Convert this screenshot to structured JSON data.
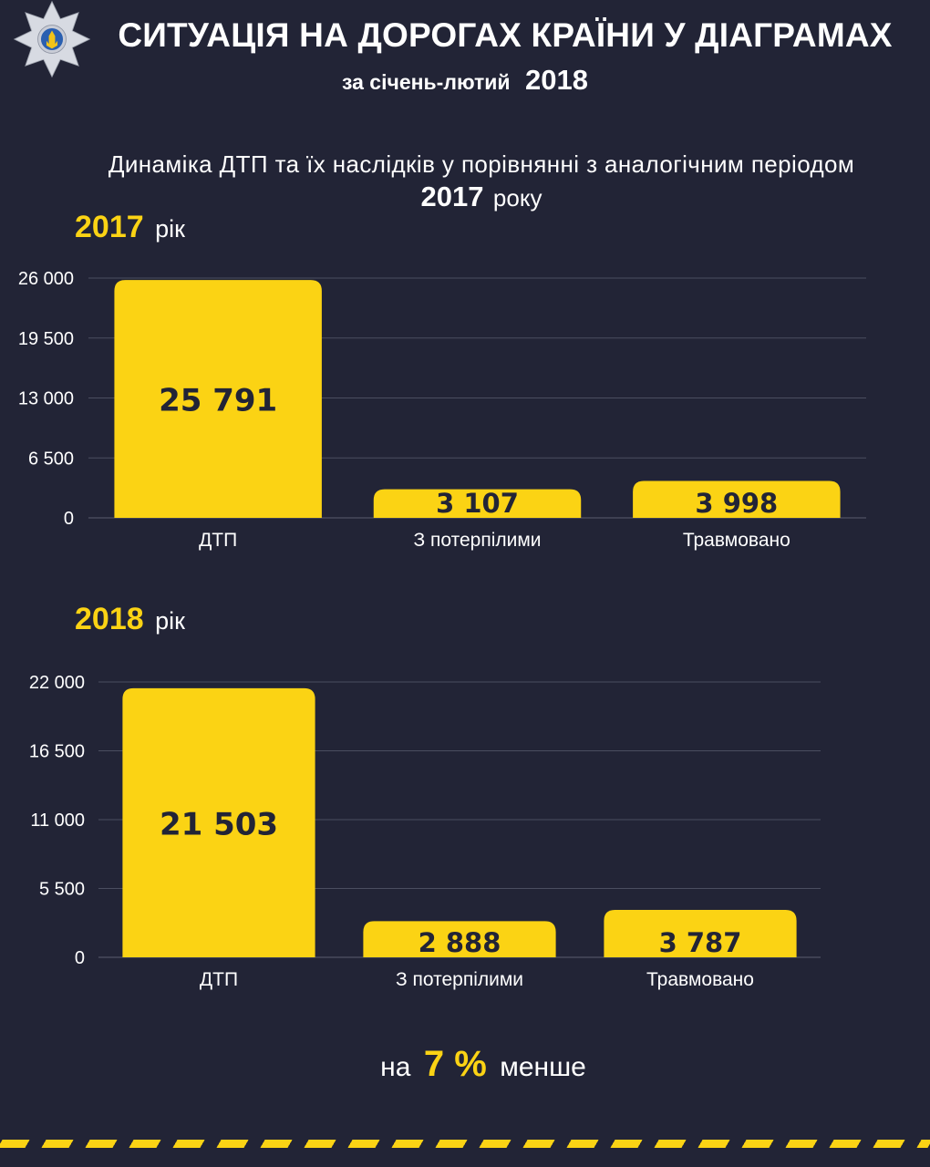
{
  "title": "СИТУАЦІЯ НА ДОРОГАХ КРАЇНИ У ДІАГРАМАХ",
  "subtitle": {
    "text": "за січень-лютий",
    "year": "2018"
  },
  "heading": {
    "line1": "Динаміка ДТП та їх наслідків  у порівнянні з аналогічним періодом",
    "year": "2017",
    "word": "року"
  },
  "footer": {
    "before": "на",
    "percent": "7 %",
    "after": "менше"
  },
  "colors": {
    "background": "#222436",
    "accent": "#fbd314",
    "text": "#ffffff",
    "value_label": "#222436"
  },
  "logo_icon": "police-star-trident-icon",
  "chart_data": [
    {
      "type": "bar",
      "label": {
        "year": "2017",
        "word": "рік"
      },
      "categories": [
        "ДТП",
        "З потерпілими",
        "Травмовано"
      ],
      "values": [
        25791,
        3107,
        3998
      ],
      "value_labels": [
        "25 791",
        "3 107",
        "3 998"
      ],
      "yticks": [
        0,
        6500,
        13000,
        19500,
        26000
      ],
      "ytick_labels": [
        "0",
        "6 500",
        "13 000",
        "19 500",
        "26 000"
      ],
      "ylim": [
        0,
        26000
      ],
      "grid": true,
      "legend": "none"
    },
    {
      "type": "bar",
      "label": {
        "year": "2018",
        "word": "рік"
      },
      "categories": [
        "ДТП",
        "З потерпілими",
        "Травмовано"
      ],
      "values": [
        21503,
        2888,
        3787
      ],
      "value_labels": [
        "21 503",
        "2 888",
        "3 787"
      ],
      "yticks": [
        0,
        5500,
        11000,
        16500,
        22000
      ],
      "ytick_labels": [
        "0",
        "5 500",
        "11 000",
        "16 500",
        "22 000"
      ],
      "ylim": [
        0,
        22000
      ],
      "grid": true,
      "legend": "none"
    }
  ]
}
